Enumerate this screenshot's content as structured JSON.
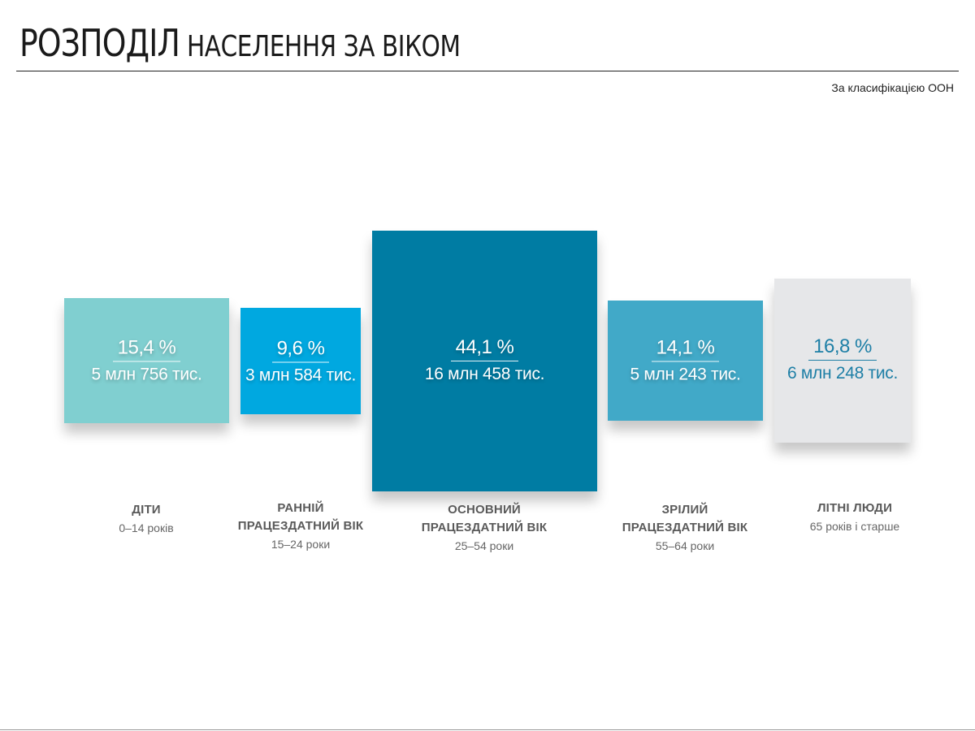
{
  "header": {
    "title_main": "РОЗПОДІЛ",
    "title_rest": "НАСЕЛЕННЯ ЗА ВІКОМ",
    "subtitle": "За класифікацією ООН"
  },
  "colors": {
    "children": "#80cfd0",
    "early": "#00a8e0",
    "main": "#007ca3",
    "mature": "#41a9c8",
    "elderly": "#e6e7e9"
  },
  "chart_data": {
    "type": "table",
    "categories": [
      "ДІТИ",
      "РАННІЙ ПРАЦЕЗДАТНИЙ ВІК",
      "ОСНОВНИЙ ПРАЦЕЗДАТНИЙ ВІК",
      "ЗРІЛИЙ ПРАЦЕЗДАТНИЙ ВІК",
      "ЛІТНІ ЛЮДИ"
    ],
    "series": [
      {
        "values": [
          15.4,
          9.6,
          44.1,
          14.1,
          16.8
        ]
      }
    ],
    "groups": [
      {
        "id": "children",
        "pct": "15,4 %",
        "abs": "5 млн 756 тис.",
        "name_lines": [
          "ДІТИ"
        ],
        "range": "0–14 років",
        "value": 15.4
      },
      {
        "id": "early",
        "pct": "9,6 %",
        "abs": "3 млн 584 тис.",
        "name_lines": [
          "РАННІЙ",
          "ПРАЦЕЗДАТНИЙ ВІК"
        ],
        "range": "15–24 роки",
        "value": 9.6
      },
      {
        "id": "main",
        "pct": "44,1 %",
        "abs": "16 млн 458 тис.",
        "name_lines": [
          "ОСНОВНИЙ",
          "ПРАЦЕЗДАТНИЙ ВІК"
        ],
        "range": "25–54 роки",
        "value": 44.1
      },
      {
        "id": "mature",
        "pct": "14,1 %",
        "abs": "5 млн 243 тис.",
        "name_lines": [
          "ЗРІЛИЙ",
          "ПРАЦЕЗДАТНИЙ ВІК"
        ],
        "range": "55–64 роки",
        "value": 14.1
      },
      {
        "id": "elderly",
        "pct": "16,8 %",
        "abs": "6 млн 248 тис.",
        "name_lines": [
          "ЛІТНІ ЛЮДИ"
        ],
        "range": "65 років і старше",
        "value": 16.8
      }
    ]
  }
}
